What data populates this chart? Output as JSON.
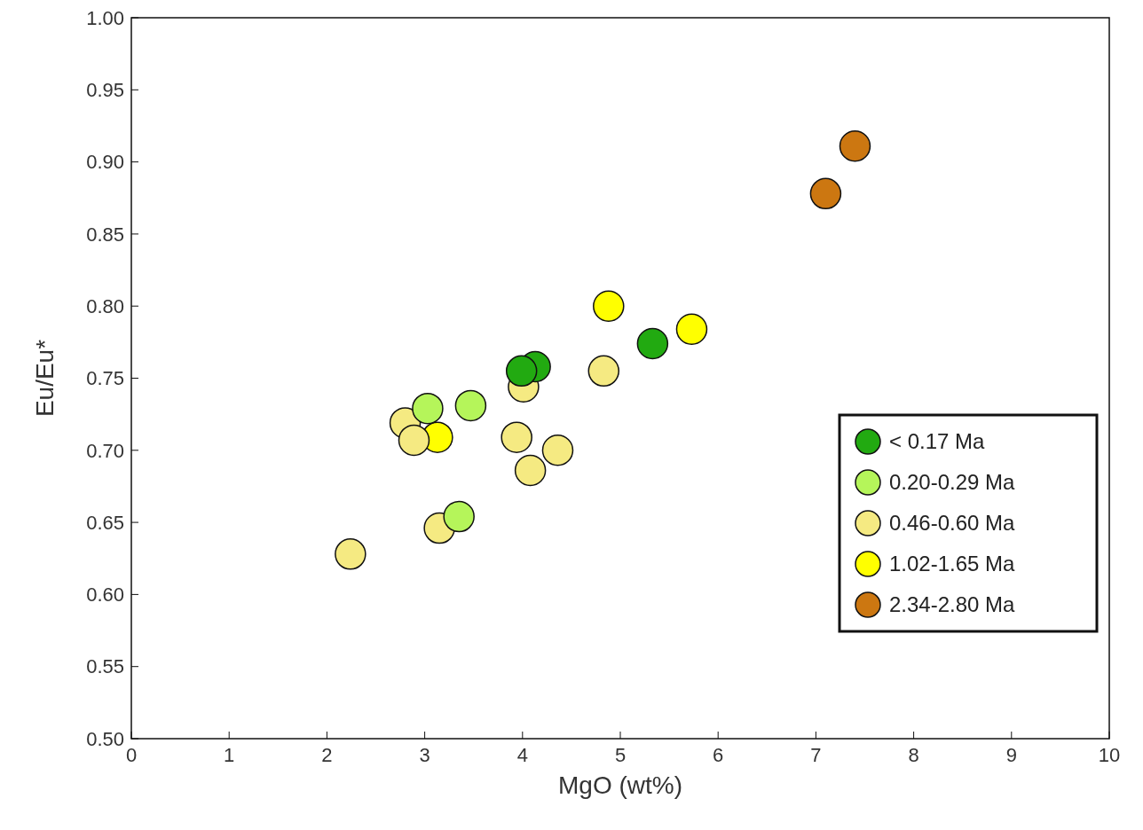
{
  "chart_data": {
    "type": "scatter",
    "xlabel": "MgO (wt%)",
    "ylabel": "Eu/Eu*",
    "xlim": [
      0,
      10
    ],
    "xticks": [
      0,
      1,
      2,
      3,
      4,
      5,
      6,
      7,
      8,
      9,
      10
    ],
    "ylim": [
      0.5,
      1.0
    ],
    "yticks": [
      {
        "value": 0.5,
        "label": "0.50"
      },
      {
        "value": 0.55,
        "label": "0.55"
      },
      {
        "value": 0.6,
        "label": "0.60"
      },
      {
        "value": 0.65,
        "label": "0.65"
      },
      {
        "value": 0.7,
        "label": "0.70"
      },
      {
        "value": 0.75,
        "label": "0.75"
      },
      {
        "value": 0.8,
        "label": "0.80"
      },
      {
        "value": 0.85,
        "label": "0.85"
      },
      {
        "value": 0.9,
        "label": "0.90"
      },
      {
        "value": 0.95,
        "label": "0.95"
      },
      {
        "value": 1.0,
        "label": "1.00"
      }
    ],
    "grid": false,
    "legend": "right",
    "marker": "circle",
    "series": [
      {
        "name": "< 0.17 Ma",
        "color": "#22aa11",
        "x": [
          4.13,
          3.99,
          5.33
        ],
        "values": [
          0.758,
          0.755,
          0.774
        ]
      },
      {
        "name": "0.20-0.29 Ma",
        "color": "#b5f55a",
        "x": [
          3.03,
          3.47,
          3.35
        ],
        "values": [
          0.729,
          0.731,
          0.654
        ]
      },
      {
        "name": "0.46-0.60 Ma",
        "color": "#f5ea82",
        "x": [
          2.8,
          2.89,
          4.01,
          3.94,
          4.36,
          4.08,
          3.15,
          2.24,
          4.83
        ],
        "values": [
          0.719,
          0.707,
          0.744,
          0.709,
          0.7,
          0.686,
          0.646,
          0.628,
          0.755
        ]
      },
      {
        "name": "1.02-1.65 Ma",
        "color": "#ffff00",
        "x": [
          3.13,
          4.88,
          5.73
        ],
        "values": [
          0.709,
          0.8,
          0.784
        ]
      },
      {
        "name": "2.34-2.80 Ma",
        "color": "#cc7711",
        "x": [
          7.1,
          7.4
        ],
        "values": [
          0.878,
          0.911
        ]
      }
    ]
  }
}
